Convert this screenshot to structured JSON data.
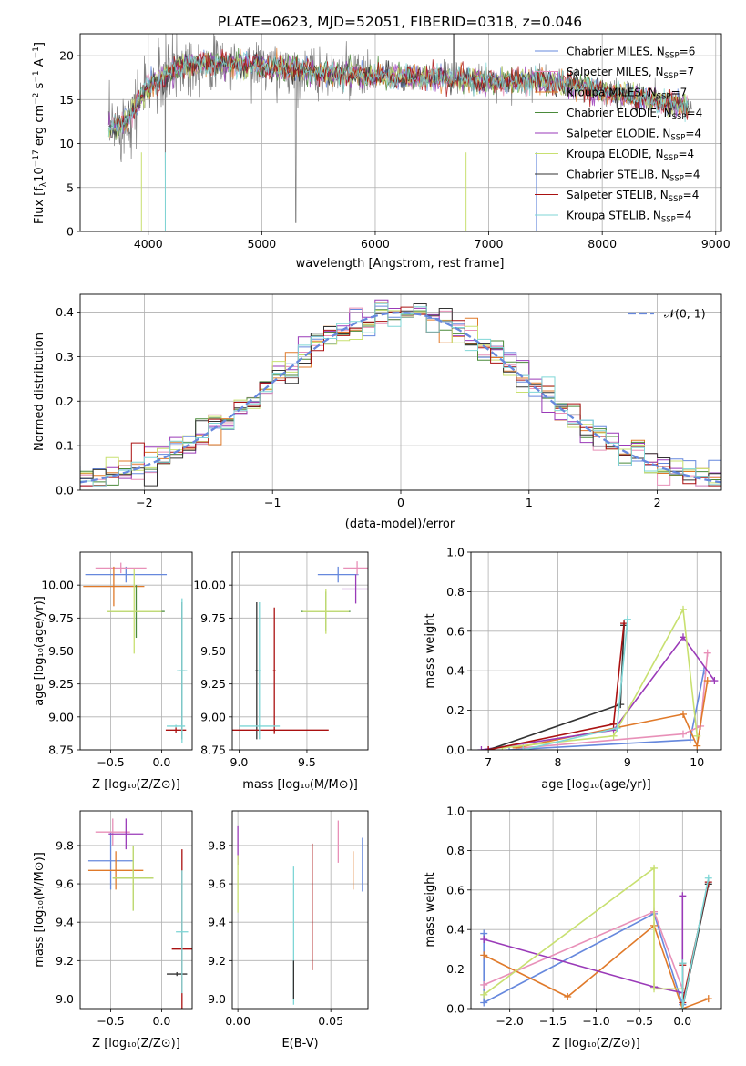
{
  "figure_title": "PLATE=0623, MJD=52051, FIBERID=0318, z=0.046",
  "legend": [
    {
      "label": "Chabrier MILES, N",
      "sub": "SSP",
      "tail": "=6",
      "color": "#6688dd"
    },
    {
      "label": "Salpeter MILES, N",
      "sub": "SSP",
      "tail": "=7",
      "color": "#e890b8"
    },
    {
      "label": "Kroupa MILES, N",
      "sub": "SSP",
      "tail": "=7",
      "color": "#e07a2a"
    },
    {
      "label": "Chabrier ELODIE, N",
      "sub": "SSP",
      "tail": "=4",
      "color": "#4a8a3a"
    },
    {
      "label": "Salpeter ELODIE, N",
      "sub": "SSP",
      "tail": "=4",
      "color": "#9a3ab8"
    },
    {
      "label": "Kroupa ELODIE, N",
      "sub": "SSP",
      "tail": "=4",
      "color": "#c8e070"
    },
    {
      "label": "Chabrier STELIB, N",
      "sub": "SSP",
      "tail": "=4",
      "color": "#333333"
    },
    {
      "label": "Salpeter STELIB, N",
      "sub": "SSP",
      "tail": "=4",
      "color": "#aa1111"
    },
    {
      "label": "Kroupa STELIB, N",
      "sub": "SSP",
      "tail": "=4",
      "color": "#7fd6d6"
    }
  ],
  "chart_data": [
    {
      "id": "spectrum",
      "type": "line",
      "title": "PLATE=0623, MJD=52051, FIBERID=0318, z=0.046",
      "xlabel": "wavelength [Angstrom, rest frame]",
      "ylabel_parts": {
        "pre": "Flux [f",
        "sub": "λ",
        "mid": "10",
        "sup": "−17",
        "post": " erg cm",
        "sup2": "−2",
        "post2": " s",
        "sup3": "−1",
        "post3": " A",
        "sup4": "−1",
        "end": "]"
      },
      "xlim": [
        3400,
        9050
      ],
      "ylim": [
        0,
        22.5
      ],
      "xticks": [
        4000,
        5000,
        6000,
        7000,
        8000,
        9000
      ],
      "yticks": [
        0,
        5,
        10,
        15,
        20
      ],
      "data_shape": {
        "x": [
          3650,
          3800,
          4000,
          4300,
          4600,
          5000,
          5400,
          5800,
          6200,
          6600,
          7000,
          7400,
          7800,
          8200,
          8600,
          8800
        ],
        "y": [
          11.5,
          12.5,
          16.5,
          19.0,
          19.2,
          18.8,
          18.2,
          17.8,
          17.5,
          17.6,
          17.0,
          17.2,
          16.5,
          15.5,
          14.6,
          14.2
        ]
      }
    },
    {
      "id": "residuals",
      "type": "line",
      "xlabel": "(data-model)/error",
      "ylabel": "Normed distribution",
      "xlim": [
        -2.5,
        2.5
      ],
      "ylim": [
        0,
        0.44
      ],
      "xticks": [
        -2,
        -1,
        0,
        1,
        2
      ],
      "xtick_labels": [
        "−2",
        "−1",
        "0",
        "1",
        "2"
      ],
      "yticks": [
        0.0,
        0.1,
        0.2,
        0.3,
        0.4
      ],
      "ytick_labels": [
        "0.0",
        "0.1",
        "0.2",
        "0.3",
        "0.4"
      ],
      "reference": {
        "name": "𝒩(0, 1)",
        "mean": 0,
        "sigma": 1,
        "color": "#6688dd"
      }
    },
    {
      "id": "age_vs_Z",
      "type": "scatter",
      "xlabel": "Z [log₁₀(Z/Z⊙)]",
      "ylabel": "age  [log₁₀(age/yr)]",
      "xlim": [
        -0.8,
        0.3
      ],
      "ylim": [
        8.75,
        10.25
      ],
      "xticks": [
        -0.5,
        0.0
      ],
      "xtick_labels": [
        "−0.5",
        "0.0"
      ],
      "yticks": [
        8.75,
        9.0,
        9.25,
        9.5,
        9.75,
        10.0
      ],
      "ytick_labels": [
        "8.75",
        "9.00",
        "9.25",
        "9.50",
        "9.75",
        "10.00"
      ],
      "points": [
        {
          "series": 0,
          "x": -0.35,
          "xerr": 0.4,
          "y": 10.08,
          "yerr": 0.06
        },
        {
          "series": 1,
          "x": -0.4,
          "xerr": 0.25,
          "y": 10.13,
          "yerr": 0.04
        },
        {
          "series": 2,
          "x": -0.47,
          "xerr": 0.3,
          "y": 9.99,
          "yerr": 0.15
        },
        {
          "series": 3,
          "x": -0.25,
          "xerr": 0.28,
          "y": 9.8,
          "yerr": 0.2
        },
        {
          "series": 5,
          "x": -0.27,
          "xerr": 0.27,
          "y": 9.8,
          "yerr": 0.32
        },
        {
          "series": 6,
          "x": 0.2,
          "xerr": 0.03,
          "y": 9.35,
          "yerr": 0.52
        },
        {
          "series": 7,
          "x": 0.14,
          "xerr": 0.1,
          "y": 8.9,
          "yerr": 0.02
        },
        {
          "series": 8,
          "x": 0.2,
          "xerr": 0.05,
          "y": 9.35,
          "yerr": 0.55
        },
        {
          "series": 8,
          "x": 0.14,
          "xerr": 0.09,
          "y": 8.93,
          "yerr": 0.01
        }
      ]
    },
    {
      "id": "age_vs_mass",
      "type": "scatter",
      "xlabel": "mass [log₁₀(M/M⊙)]",
      "xlim": [
        8.95,
        9.95
      ],
      "ylim": [
        8.75,
        10.25
      ],
      "xticks": [
        9.0,
        9.5
      ],
      "xtick_labels": [
        "9.0",
        "9.5"
      ],
      "yticks": [
        8.75,
        9.0,
        9.25,
        9.5,
        9.75,
        10.0
      ],
      "ytick_labels": [
        "8.75",
        "9.00",
        "9.25",
        "9.50",
        "9.75",
        "10.00"
      ],
      "points": [
        {
          "series": 0,
          "x": 9.73,
          "xerr": 0.15,
          "y": 10.08,
          "yerr": 0.06
        },
        {
          "series": 1,
          "x": 9.87,
          "xerr": 0.1,
          "y": 10.13,
          "yerr": 0.05
        },
        {
          "series": 4,
          "x": 9.86,
          "xerr": 0.1,
          "y": 9.97,
          "yerr": 0.11
        },
        {
          "series": 3,
          "x": 9.64,
          "xerr": 0.18,
          "y": 9.8,
          "yerr": 0.15
        },
        {
          "series": 5,
          "x": 9.64,
          "xerr": 0.17,
          "y": 9.8,
          "yerr": 0.17
        },
        {
          "series": 6,
          "x": 9.13,
          "xerr": 0.01,
          "y": 9.35,
          "yerr": 0.52
        },
        {
          "series": 7,
          "x": 9.26,
          "xerr": 0.4,
          "y": 8.9,
          "yerr": 0.01
        },
        {
          "series": 7,
          "x": 9.26,
          "xerr": 0.01,
          "y": 9.35,
          "yerr": 0.48
        },
        {
          "series": 8,
          "x": 9.15,
          "xerr": 0.15,
          "y": 8.93,
          "yerr": 0.01
        },
        {
          "series": 8,
          "x": 9.15,
          "xerr": 0.01,
          "y": 9.35,
          "yerr": 0.52
        }
      ]
    },
    {
      "id": "weight_vs_age",
      "type": "line",
      "xlabel": "age  [log₁₀(age/yr)]",
      "ylabel": "mass weight",
      "xlim": [
        6.75,
        10.35
      ],
      "ylim": [
        0,
        1.0
      ],
      "xticks": [
        7,
        8,
        9,
        10
      ],
      "xtick_labels": [
        "7",
        "8",
        "9",
        "10"
      ],
      "yticks": [
        0.0,
        0.2,
        0.4,
        0.6,
        0.8,
        1.0
      ],
      "ytick_labels": [
        "0.0",
        "0.2",
        "0.4",
        "0.6",
        "0.8",
        "1.0"
      ],
      "series": [
        {
          "series": 0,
          "x": [
            7.3,
            9.9,
            10.1
          ],
          "y": [
            0.0,
            0.05,
            0.4
          ]
        },
        {
          "series": 1,
          "x": [
            7.5,
            9.8,
            10.05,
            10.15
          ],
          "y": [
            0.01,
            0.08,
            0.12,
            0.49
          ]
        },
        {
          "series": 2,
          "x": [
            7.4,
            9.8,
            10.0,
            10.15
          ],
          "y": [
            0.01,
            0.18,
            0.02,
            0.35
          ]
        },
        {
          "series": 4,
          "x": [
            6.9,
            8.8,
            9.8,
            10.25
          ],
          "y": [
            0.0,
            0.1,
            0.57,
            0.35
          ]
        },
        {
          "series": 5,
          "x": [
            7.2,
            8.8,
            9.8,
            10.0
          ],
          "y": [
            0.01,
            0.07,
            0.71,
            0.07
          ]
        },
        {
          "series": 6,
          "x": [
            7.0,
            8.9,
            8.95
          ],
          "y": [
            0.0,
            0.23,
            0.63
          ]
        },
        {
          "series": 7,
          "x": [
            7.0,
            8.8,
            8.95
          ],
          "y": [
            0.0,
            0.13,
            0.64
          ]
        },
        {
          "series": 8,
          "x": [
            7.5,
            8.85,
            9.0
          ],
          "y": [
            0.0,
            0.11,
            0.66
          ]
        }
      ]
    },
    {
      "id": "mass_vs_Z",
      "type": "scatter",
      "xlabel": "Z [log₁₀(Z/Z⊙)]",
      "ylabel": "mass [log₁₀(M/M⊙)]",
      "xlim": [
        -0.8,
        0.3
      ],
      "ylim": [
        8.95,
        9.98
      ],
      "xticks": [
        -0.5,
        0.0
      ],
      "xtick_labels": [
        "−0.5",
        "0.0"
      ],
      "yticks": [
        9.0,
        9.2,
        9.4,
        9.6,
        9.8
      ],
      "ytick_labels": [
        "9.0",
        "9.2",
        "9.4",
        "9.6",
        "9.8"
      ],
      "points": [
        {
          "series": 0,
          "x": -0.5,
          "xerr": 0.22,
          "y": 9.72,
          "yerr": 0.15
        },
        {
          "series": 1,
          "x": -0.48,
          "xerr": 0.17,
          "y": 9.87,
          "yerr": 0.07
        },
        {
          "series": 4,
          "x": -0.35,
          "xerr": 0.17,
          "y": 9.86,
          "yerr": 0.08
        },
        {
          "series": 2,
          "x": -0.45,
          "xerr": 0.27,
          "y": 9.67,
          "yerr": 0.1
        },
        {
          "series": 3,
          "x": -0.28,
          "xerr": 0.2,
          "y": 9.63,
          "yerr": 0.17
        },
        {
          "series": 5,
          "x": -0.28,
          "xerr": 0.2,
          "y": 9.63,
          "yerr": 0.17
        },
        {
          "series": 7,
          "x": 0.2,
          "xerr": 0.1,
          "y": 9.26,
          "yerr": 0.52
        },
        {
          "series": 6,
          "x": 0.15,
          "xerr": 0.1,
          "y": 9.13,
          "yerr": 0.01
        },
        {
          "series": 8,
          "x": 0.2,
          "xerr": 0.06,
          "y": 9.35,
          "yerr": 0.32
        }
      ]
    },
    {
      "id": "mass_vs_ebv",
      "type": "scatter",
      "xlabel": "E(B-V)",
      "xlim": [
        -0.003,
        0.07
      ],
      "ylim": [
        8.95,
        9.98
      ],
      "xticks": [
        0.0,
        0.05
      ],
      "xtick_labels": [
        "0.00",
        "0.05"
      ],
      "yticks": [
        9.0,
        9.2,
        9.4,
        9.6,
        9.8
      ],
      "ytick_labels": [
        "9.0",
        "9.2",
        "9.4",
        "9.6",
        "9.8"
      ],
      "points": [
        {
          "series": 4,
          "x": 0.0,
          "y": 9.8,
          "yerr": 0.1
        },
        {
          "series": 5,
          "x": 0.0,
          "y": 9.6,
          "yerr": 0.15
        },
        {
          "series": 8,
          "x": 0.03,
          "y": 9.33,
          "yerr": 0.36
        },
        {
          "series": 6,
          "x": 0.03,
          "y": 9.1,
          "yerr": 0.1
        },
        {
          "series": 7,
          "x": 0.04,
          "y": 9.48,
          "yerr": 0.33
        },
        {
          "series": 1,
          "x": 0.054,
          "y": 9.82,
          "yerr": 0.11
        },
        {
          "series": 2,
          "x": 0.062,
          "y": 9.67,
          "yerr": 0.1
        },
        {
          "series": 0,
          "x": 0.067,
          "y": 9.7,
          "yerr": 0.14
        }
      ]
    },
    {
      "id": "weight_vs_Z",
      "type": "line",
      "xlabel": "Z [log₁₀(Z/Z⊙)]",
      "ylabel": "mass weight",
      "xlim": [
        -2.45,
        0.45
      ],
      "ylim": [
        0,
        1.0
      ],
      "xticks": [
        -2.0,
        -1.5,
        -1.0,
        -0.5,
        0.0
      ],
      "xtick_labels": [
        "−2.0",
        "−1.5",
        "−1.0",
        "−0.5",
        "0.0"
      ],
      "yticks": [
        0.0,
        0.2,
        0.4,
        0.6,
        0.8,
        1.0
      ],
      "ytick_labels": [
        "0.0",
        "0.2",
        "0.4",
        "0.6",
        "0.8",
        "1.0"
      ],
      "series": [
        {
          "series": 0,
          "x": [
            -2.3,
            -2.3,
            -0.33,
            0.0,
            0.0
          ],
          "y": [
            0.38,
            0.03,
            0.48,
            0.02,
            0.1
          ]
        },
        {
          "series": 1,
          "x": [
            -2.3,
            -0.33,
            0.0,
            0.0
          ],
          "y": [
            0.12,
            0.49,
            0.1,
            0.0
          ]
        },
        {
          "series": 2,
          "x": [
            -2.3,
            -1.33,
            -0.33,
            0.0,
            0.3
          ],
          "y": [
            0.27,
            0.06,
            0.42,
            0.0,
            0.05
          ]
        },
        {
          "series": 4,
          "x": [
            -2.3,
            -0.33,
            0.0,
            0.0
          ],
          "y": [
            0.35,
            0.11,
            0.08,
            0.57
          ]
        },
        {
          "series": 5,
          "x": [
            -2.3,
            -0.33,
            -0.33,
            0.0
          ],
          "y": [
            0.07,
            0.71,
            0.1,
            0.1
          ]
        },
        {
          "series": 6,
          "x": [
            0.0,
            0.0,
            0.3
          ],
          "y": [
            0.23,
            0.0,
            0.63
          ]
        },
        {
          "series": 7,
          "x": [
            0.0,
            0.0,
            0.3
          ],
          "y": [
            0.22,
            0.03,
            0.64
          ]
        },
        {
          "series": 8,
          "x": [
            0.0,
            0.0,
            0.3
          ],
          "y": [
            0.23,
            0.0,
            0.66
          ]
        }
      ]
    }
  ]
}
